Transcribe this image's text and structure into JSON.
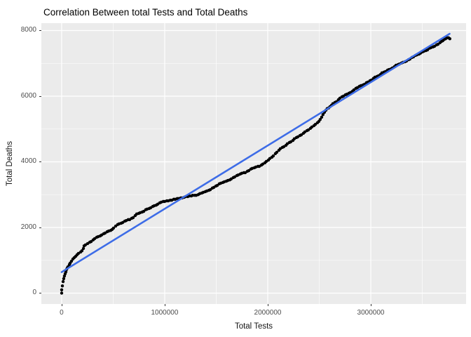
{
  "colors": {
    "panel_bg": "#EBEBEB",
    "grid": "#FFFFFF",
    "point": "#000000",
    "trend": "#3D6CE7",
    "tick_text": "#4D4D4D",
    "tick_mark": "#333333"
  },
  "chart_data": {
    "type": "scatter",
    "title": "Correlation Between total Tests and Total Deaths",
    "xlabel": "Total Tests",
    "ylabel": "Total Deaths",
    "legend": "none",
    "grid": "on",
    "x_ticks": [
      0,
      1000000,
      2000000,
      3000000
    ],
    "x_tick_labels": [
      "0",
      "1000000",
      "2000000",
      "3000000"
    ],
    "x_minor_ticks": [
      500000,
      1500000,
      2500000,
      3500000
    ],
    "y_ticks": [
      0,
      2000,
      4000,
      6000,
      8000
    ],
    "y_tick_labels": [
      "0",
      "2000",
      "4000",
      "6000",
      "8000"
    ],
    "y_minor_ticks": [
      1000,
      3000,
      5000,
      7000
    ],
    "xlim": [
      -197000,
      3925000
    ],
    "ylim": [
      -332,
      8224
    ],
    "trend_line": {
      "x": [
        0,
        3765000
      ],
      "y": [
        640,
        7900
      ]
    },
    "points": [
      [
        0,
        0
      ],
      [
        0,
        100
      ],
      [
        7000,
        220
      ],
      [
        14000,
        350
      ],
      [
        20000,
        440
      ],
      [
        27000,
        520
      ],
      [
        34000,
        590
      ],
      [
        41000,
        650
      ],
      [
        48000,
        720
      ],
      [
        54000,
        760
      ],
      [
        61000,
        800
      ],
      [
        75000,
        870
      ],
      [
        82000,
        910
      ],
      [
        95000,
        970
      ],
      [
        109000,
        1040
      ],
      [
        122000,
        1080
      ],
      [
        136000,
        1120
      ],
      [
        150000,
        1170
      ],
      [
        163000,
        1210
      ],
      [
        184000,
        1250
      ],
      [
        197000,
        1290
      ],
      [
        211000,
        1360
      ],
      [
        218000,
        1440
      ],
      [
        231000,
        1470
      ],
      [
        252000,
        1510
      ],
      [
        272000,
        1550
      ],
      [
        286000,
        1570
      ],
      [
        306000,
        1620
      ],
      [
        320000,
        1660
      ],
      [
        340000,
        1700
      ],
      [
        354000,
        1720
      ],
      [
        374000,
        1740
      ],
      [
        388000,
        1770
      ],
      [
        408000,
        1810
      ],
      [
        422000,
        1830
      ],
      [
        442000,
        1870
      ],
      [
        456000,
        1890
      ],
      [
        476000,
        1910
      ],
      [
        490000,
        1940
      ],
      [
        503000,
        1980
      ],
      [
        524000,
        2040
      ],
      [
        544000,
        2090
      ],
      [
        558000,
        2110
      ],
      [
        578000,
        2130
      ],
      [
        592000,
        2150
      ],
      [
        612000,
        2190
      ],
      [
        626000,
        2210
      ],
      [
        646000,
        2240
      ],
      [
        660000,
        2240
      ],
      [
        680000,
        2280
      ],
      [
        694000,
        2300
      ],
      [
        714000,
        2360
      ],
      [
        728000,
        2410
      ],
      [
        748000,
        2430
      ],
      [
        762000,
        2450
      ],
      [
        782000,
        2470
      ],
      [
        796000,
        2490
      ],
      [
        816000,
        2540
      ],
      [
        830000,
        2560
      ],
      [
        850000,
        2580
      ],
      [
        864000,
        2600
      ],
      [
        884000,
        2640
      ],
      [
        898000,
        2660
      ],
      [
        918000,
        2680
      ],
      [
        932000,
        2710
      ],
      [
        952000,
        2750
      ],
      [
        966000,
        2770
      ],
      [
        986000,
        2790
      ],
      [
        1000000,
        2790
      ],
      [
        1020000,
        2810
      ],
      [
        1034000,
        2810
      ],
      [
        1054000,
        2830
      ],
      [
        1068000,
        2830
      ],
      [
        1088000,
        2860
      ],
      [
        1102000,
        2860
      ],
      [
        1122000,
        2880
      ],
      [
        1136000,
        2880
      ],
      [
        1156000,
        2900
      ],
      [
        1170000,
        2900
      ],
      [
        1190000,
        2920
      ],
      [
        1204000,
        2940
      ],
      [
        1224000,
        2940
      ],
      [
        1238000,
        2960
      ],
      [
        1258000,
        2960
      ],
      [
        1272000,
        2980
      ],
      [
        1292000,
        2980
      ],
      [
        1306000,
        2980
      ],
      [
        1326000,
        3000
      ],
      [
        1340000,
        3030
      ],
      [
        1360000,
        3050
      ],
      [
        1374000,
        3070
      ],
      [
        1394000,
        3090
      ],
      [
        1408000,
        3110
      ],
      [
        1428000,
        3130
      ],
      [
        1442000,
        3150
      ],
      [
        1462000,
        3200
      ],
      [
        1476000,
        3220
      ],
      [
        1496000,
        3260
      ],
      [
        1510000,
        3280
      ],
      [
        1530000,
        3330
      ],
      [
        1544000,
        3350
      ],
      [
        1564000,
        3370
      ],
      [
        1578000,
        3390
      ],
      [
        1598000,
        3410
      ],
      [
        1612000,
        3430
      ],
      [
        1632000,
        3450
      ],
      [
        1646000,
        3480
      ],
      [
        1666000,
        3520
      ],
      [
        1680000,
        3540
      ],
      [
        1700000,
        3580
      ],
      [
        1714000,
        3600
      ],
      [
        1734000,
        3630
      ],
      [
        1748000,
        3650
      ],
      [
        1768000,
        3670
      ],
      [
        1782000,
        3670
      ],
      [
        1802000,
        3710
      ],
      [
        1816000,
        3730
      ],
      [
        1836000,
        3780
      ],
      [
        1850000,
        3800
      ],
      [
        1870000,
        3820
      ],
      [
        1884000,
        3840
      ],
      [
        1904000,
        3860
      ],
      [
        1918000,
        3860
      ],
      [
        1938000,
        3900
      ],
      [
        1952000,
        3930
      ],
      [
        1972000,
        3970
      ],
      [
        1986000,
        4010
      ],
      [
        2006000,
        4050
      ],
      [
        2020000,
        4100
      ],
      [
        2040000,
        4140
      ],
      [
        2054000,
        4180
      ],
      [
        2074000,
        4250
      ],
      [
        2088000,
        4290
      ],
      [
        2108000,
        4350
      ],
      [
        2122000,
        4400
      ],
      [
        2142000,
        4440
      ],
      [
        2156000,
        4460
      ],
      [
        2176000,
        4500
      ],
      [
        2190000,
        4550
      ],
      [
        2210000,
        4590
      ],
      [
        2224000,
        4610
      ],
      [
        2244000,
        4650
      ],
      [
        2258000,
        4700
      ],
      [
        2278000,
        4740
      ],
      [
        2292000,
        4760
      ],
      [
        2312000,
        4800
      ],
      [
        2326000,
        4820
      ],
      [
        2346000,
        4870
      ],
      [
        2360000,
        4910
      ],
      [
        2380000,
        4950
      ],
      [
        2394000,
        4970
      ],
      [
        2414000,
        5020
      ],
      [
        2428000,
        5060
      ],
      [
        2448000,
        5100
      ],
      [
        2462000,
        5140
      ],
      [
        2482000,
        5190
      ],
      [
        2496000,
        5230
      ],
      [
        2509000,
        5290
      ],
      [
        2523000,
        5360
      ],
      [
        2536000,
        5440
      ],
      [
        2550000,
        5510
      ],
      [
        2564000,
        5570
      ],
      [
        2577000,
        5620
      ],
      [
        2591000,
        5640
      ],
      [
        2604000,
        5680
      ],
      [
        2618000,
        5720
      ],
      [
        2632000,
        5770
      ],
      [
        2652000,
        5810
      ],
      [
        2666000,
        5830
      ],
      [
        2686000,
        5890
      ],
      [
        2700000,
        5940
      ],
      [
        2720000,
        5980
      ],
      [
        2734000,
        6000
      ],
      [
        2754000,
        6040
      ],
      [
        2768000,
        6060
      ],
      [
        2788000,
        6090
      ],
      [
        2802000,
        6110
      ],
      [
        2822000,
        6150
      ],
      [
        2836000,
        6190
      ],
      [
        2856000,
        6240
      ],
      [
        2870000,
        6260
      ],
      [
        2890000,
        6300
      ],
      [
        2904000,
        6320
      ],
      [
        2924000,
        6340
      ],
      [
        2938000,
        6360
      ],
      [
        2958000,
        6410
      ],
      [
        2972000,
        6430
      ],
      [
        2992000,
        6470
      ],
      [
        3006000,
        6490
      ],
      [
        3026000,
        6540
      ],
      [
        3040000,
        6580
      ],
      [
        3060000,
        6600
      ],
      [
        3074000,
        6620
      ],
      [
        3094000,
        6660
      ],
      [
        3108000,
        6710
      ],
      [
        3128000,
        6730
      ],
      [
        3142000,
        6750
      ],
      [
        3162000,
        6790
      ],
      [
        3176000,
        6810
      ],
      [
        3196000,
        6830
      ],
      [
        3210000,
        6860
      ],
      [
        3230000,
        6900
      ],
      [
        3244000,
        6940
      ],
      [
        3264000,
        6960
      ],
      [
        3278000,
        6980
      ],
      [
        3298000,
        7010
      ],
      [
        3312000,
        7030
      ],
      [
        3332000,
        7050
      ],
      [
        3346000,
        7070
      ],
      [
        3366000,
        7110
      ],
      [
        3380000,
        7130
      ],
      [
        3400000,
        7180
      ],
      [
        3414000,
        7200
      ],
      [
        3434000,
        7240
      ],
      [
        3448000,
        7260
      ],
      [
        3468000,
        7280
      ],
      [
        3482000,
        7310
      ],
      [
        3502000,
        7350
      ],
      [
        3516000,
        7370
      ],
      [
        3536000,
        7390
      ],
      [
        3550000,
        7410
      ],
      [
        3570000,
        7460
      ],
      [
        3584000,
        7480
      ],
      [
        3604000,
        7500
      ],
      [
        3618000,
        7520
      ],
      [
        3638000,
        7560
      ],
      [
        3652000,
        7580
      ],
      [
        3672000,
        7630
      ],
      [
        3686000,
        7670
      ],
      [
        3699000,
        7690
      ],
      [
        3713000,
        7730
      ],
      [
        3726000,
        7750
      ],
      [
        3740000,
        7780
      ],
      [
        3754000,
        7780
      ],
      [
        3767000,
        7750
      ]
    ]
  }
}
